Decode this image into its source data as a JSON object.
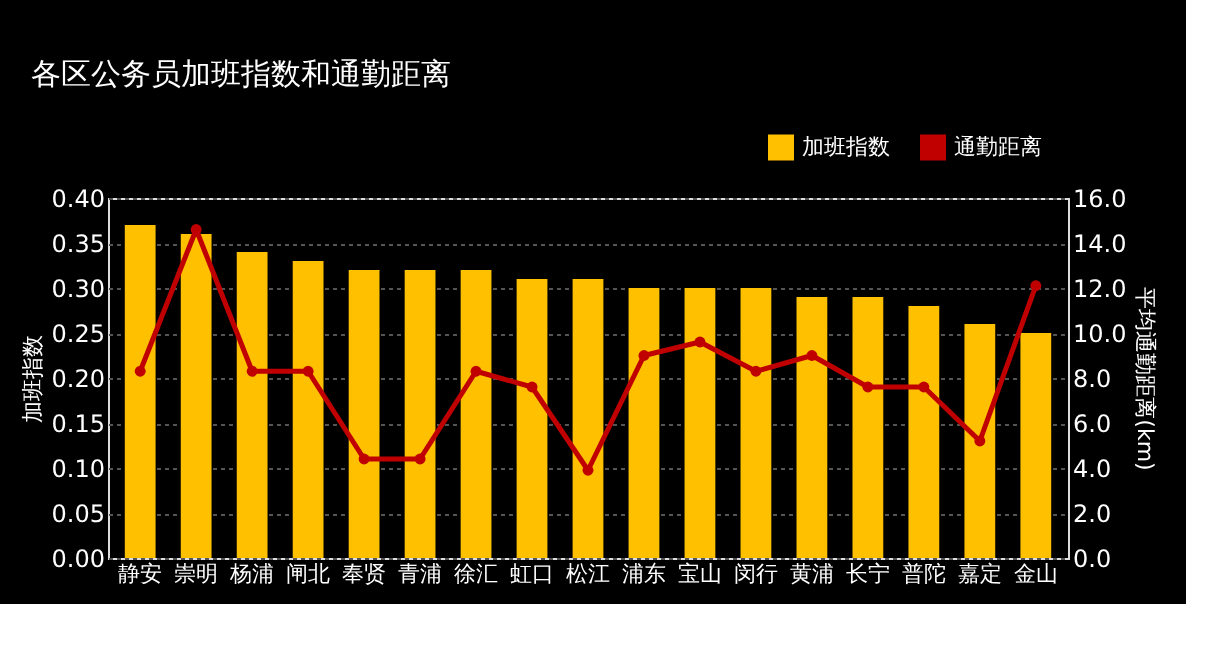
{
  "chart_data": {
    "type": "bar",
    "title": "各区公务员加班指数和通勤距离",
    "ylabel": "加班指数",
    "y2label": "平均通勤距离(km)",
    "categories": [
      "静安",
      "崇明",
      "杨浦",
      "闸北",
      "奉贤",
      "青浦",
      "徐汇",
      "虹口",
      "松江",
      "浦东",
      "宝山",
      "闵行",
      "黄浦",
      "长宁",
      "普陀",
      "嘉定",
      "金山"
    ],
    "series": [
      {
        "name": "加班指数",
        "color": "#ffc000",
        "values": [
          0.37,
          0.36,
          0.34,
          0.33,
          0.32,
          0.32,
          0.32,
          0.31,
          0.31,
          0.3,
          0.3,
          0.3,
          0.29,
          0.29,
          0.28,
          0.26,
          0.25
        ]
      },
      {
        "name": "通勤距离",
        "color": "#c00000",
        "type": "line",
        "axis": "y2",
        "marker": "circle",
        "values": [
          8.3,
          14.6,
          8.3,
          8.3,
          4.4,
          4.4,
          8.3,
          7.6,
          3.9,
          9.0,
          9.6,
          8.3,
          9.0,
          7.6,
          7.6,
          5.2,
          12.1
        ]
      }
    ],
    "ylim": [
      0,
      0.4
    ],
    "yticks": [
      {
        "value": 0,
        "label": "0.00"
      },
      {
        "value": 0.05,
        "label": "0.05"
      },
      {
        "value": 0.1,
        "label": "0.10"
      },
      {
        "value": 0.15,
        "label": "0.15"
      },
      {
        "value": 0.2,
        "label": "0.20"
      },
      {
        "value": 0.25,
        "label": "0.25"
      },
      {
        "value": 0.3,
        "label": "0.30"
      },
      {
        "value": 0.35,
        "label": "0.35"
      },
      {
        "value": 0.4,
        "label": "0.40"
      }
    ],
    "y2lim": [
      0,
      16
    ],
    "y2ticks": [
      {
        "value": 0,
        "label": "0.0"
      },
      {
        "value": 2,
        "label": "2.0"
      },
      {
        "value": 4,
        "label": "4.0"
      },
      {
        "value": 6,
        "label": "6.0"
      },
      {
        "value": 8,
        "label": "8.0"
      },
      {
        "value": 10,
        "label": "10.0"
      },
      {
        "value": 12,
        "label": "12.0"
      },
      {
        "value": 14,
        "label": "14.0"
      },
      {
        "value": 16,
        "label": "16.0"
      }
    ],
    "grid": "y",
    "legend": "top right"
  }
}
